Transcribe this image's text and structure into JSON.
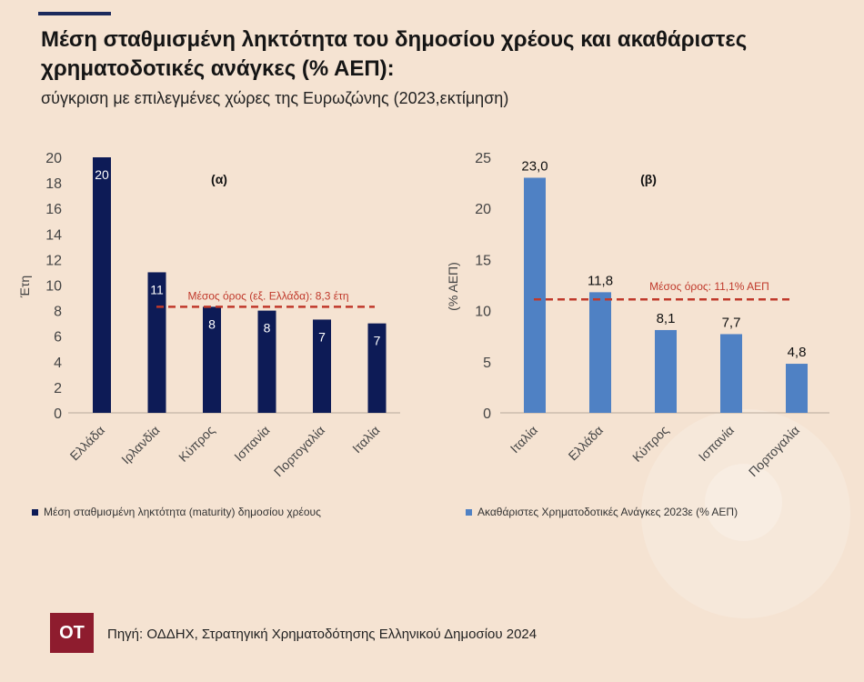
{
  "header": {
    "title": "Μέση σταθμισμένη ληκτότητα του δημοσίου χρέους και ακαθάριστες χρηματοδοτικές ανάγκες (% ΑΕΠ):",
    "subtitle": "σύγκριση με επιλεγμένες χώρες της Ευρωζώνης (2023,εκτίμηση)"
  },
  "footer": {
    "logo_text": "OT",
    "source": "Πηγή: ΟΔΔΗΧ, Στρατηγική Χρηματοδότησης Ελληνικού Δημοσίου 2024"
  },
  "chart_data": [
    {
      "type": "bar",
      "panel_label": "(α)",
      "categories": [
        "Ελλάδα",
        "Ιρλανδία",
        "Κύπρος",
        "Ισπανία",
        "Πορτογαλία",
        "Ιταλία"
      ],
      "values": [
        20,
        11,
        8.3,
        8,
        7.3,
        7
      ],
      "data_labels": [
        "20",
        "11",
        "8",
        "8",
        "7",
        "7"
      ],
      "ylabel": "Έτη",
      "ylim": [
        0,
        20
      ],
      "yticks": [
        0,
        2,
        4,
        6,
        8,
        10,
        12,
        14,
        16,
        18,
        20
      ],
      "reference_line": {
        "value": 8.3,
        "label": "Μέσος όρος (εξ. Ελλάδα): 8,3 έτη",
        "color": "#c0392b"
      },
      "bar_color": "#0d1b56",
      "label_position": "inside-top",
      "legend": "Μέση σταθμισμένη ληκτότητα (maturity) δημοσίου χρέους",
      "grid": false
    },
    {
      "type": "bar",
      "panel_label": "(β)",
      "categories": [
        "Ιταλία",
        "Ελλάδα",
        "Κύπρος",
        "Ισπανία",
        "Πορτογαλία"
      ],
      "values": [
        23.0,
        11.8,
        8.1,
        7.7,
        4.8
      ],
      "data_labels": [
        "23,0",
        "11,8",
        "8,1",
        "7,7",
        "4,8"
      ],
      "ylabel": "(% ΑΕΠ)",
      "ylim": [
        0,
        25
      ],
      "yticks": [
        0,
        5,
        10,
        15,
        20,
        25
      ],
      "reference_line": {
        "value": 11.1,
        "label": "Μέσος όρος: 11,1% ΑΕΠ",
        "color": "#c0392b"
      },
      "bar_color": "#4f81c4",
      "label_position": "above",
      "legend": "Ακαθάριστες Χρηματοδοτικές Ανάγκες 2023ε (% ΑΕΠ)",
      "grid": false
    }
  ]
}
